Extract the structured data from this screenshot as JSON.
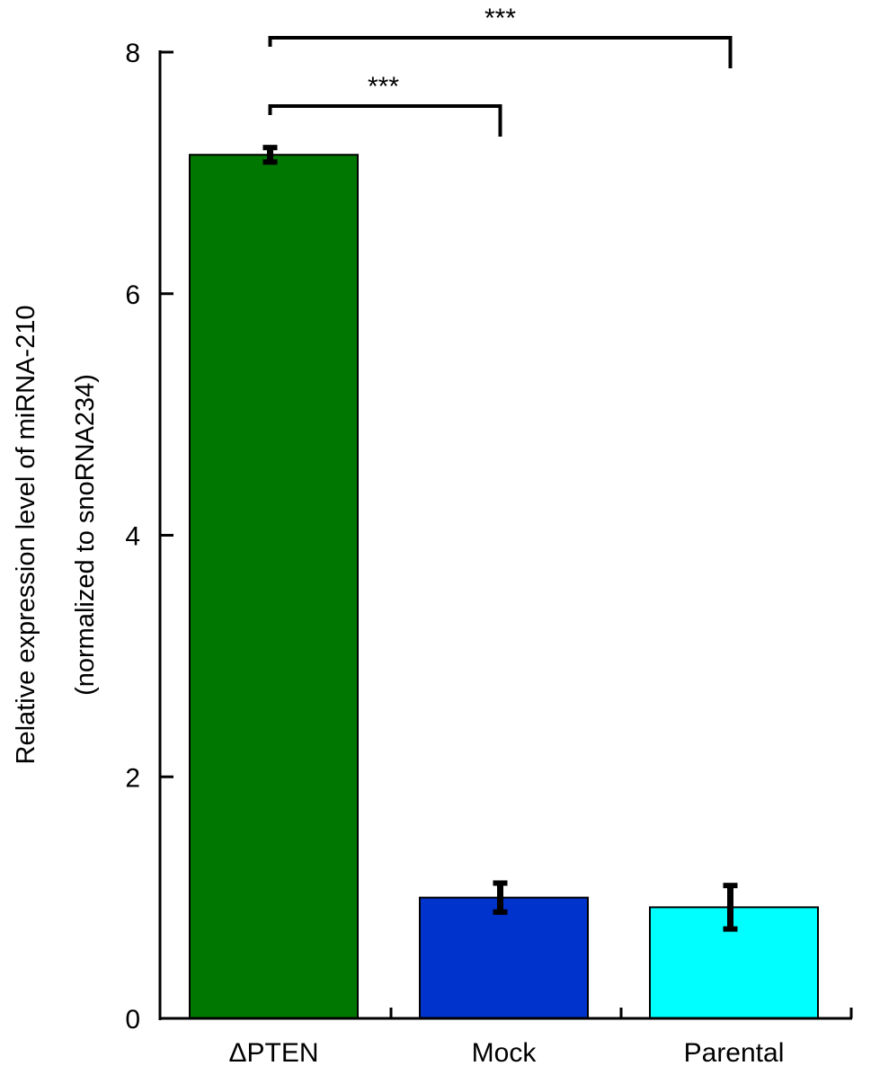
{
  "chart_data": {
    "type": "bar",
    "categories": [
      "ΔPTEN",
      "Mock",
      "Parental"
    ],
    "values": [
      7.15,
      1.0,
      0.92
    ],
    "errors": [
      0.06,
      0.12,
      0.18
    ],
    "colors": [
      "#007700",
      "#0033cc",
      "#00ffff"
    ],
    "ylabel": [
      "Relative expression level of miRNA-210",
      "(normalized to snoRNA234)"
    ],
    "ylim": [
      0,
      8
    ],
    "yticks": [
      0,
      2,
      4,
      6,
      8
    ],
    "grid": false,
    "significance": [
      {
        "from": 0,
        "to": 1,
        "label": "***"
      },
      {
        "from": 0,
        "to": 2,
        "label": "***"
      }
    ]
  }
}
